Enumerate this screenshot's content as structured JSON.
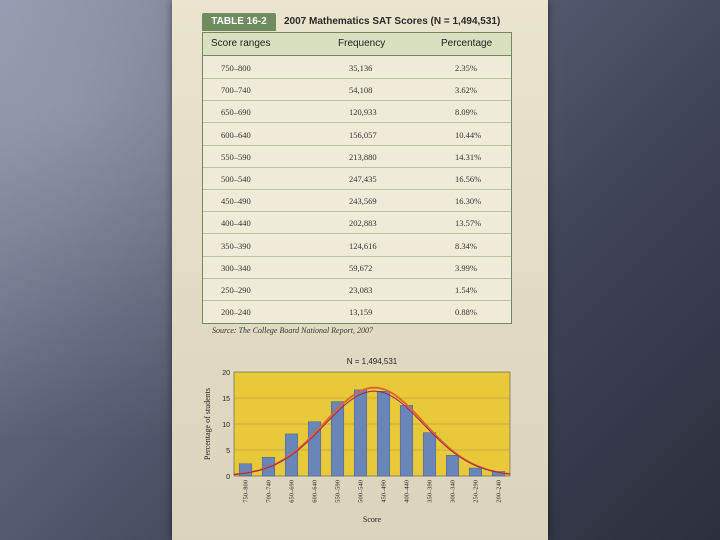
{
  "table": {
    "label": "TABLE 16-2",
    "caption": "2007 Mathematics SAT Scores (N = 1,494,531)",
    "headers": [
      "Score ranges",
      "Frequency",
      "Percentage"
    ],
    "rows": [
      [
        "750–800",
        "35,136",
        "2.35%"
      ],
      [
        "700–740",
        "54,108",
        "3.62%"
      ],
      [
        "650–690",
        "120,933",
        "8.09%"
      ],
      [
        "600–640",
        "156,057",
        "10.44%"
      ],
      [
        "550–590",
        "213,880",
        "14.31%"
      ],
      [
        "500–540",
        "247,435",
        "16.56%"
      ],
      [
        "450–490",
        "243,569",
        "16.30%"
      ],
      [
        "400–440",
        "202,883",
        "13.57%"
      ],
      [
        "350–390",
        "124,616",
        "8.34%"
      ],
      [
        "300–340",
        "59,672",
        "3.99%"
      ],
      [
        "250–290",
        "23,083",
        "1.54%"
      ],
      [
        "200–240",
        "13,159",
        "0.88%"
      ]
    ]
  },
  "source": "Source: The College Board National Report, 2007",
  "colors": {
    "table_border": "#6e8c5e",
    "chart_bg": "#e8c93a",
    "bar": "#6a86b8",
    "curve_outer": "#e0632a",
    "curve_inner": "#9a2a5a"
  },
  "chart_data": {
    "type": "bar",
    "title": "N = 1,494,531",
    "xlabel": "Score",
    "ylabel": "Percentage of students",
    "ylim": [
      0,
      20
    ],
    "yticks": [
      0,
      5,
      10,
      15,
      20
    ],
    "categories": [
      "750–800",
      "700–740",
      "650–690",
      "600–640",
      "550–590",
      "500–540",
      "450–490",
      "400–440",
      "350–390",
      "300–340",
      "250–290",
      "200–240"
    ],
    "values": [
      2.35,
      3.62,
      8.09,
      10.44,
      14.31,
      16.56,
      16.3,
      13.57,
      8.34,
      3.99,
      1.54,
      0.88
    ],
    "overlay": "normal-curve"
  }
}
